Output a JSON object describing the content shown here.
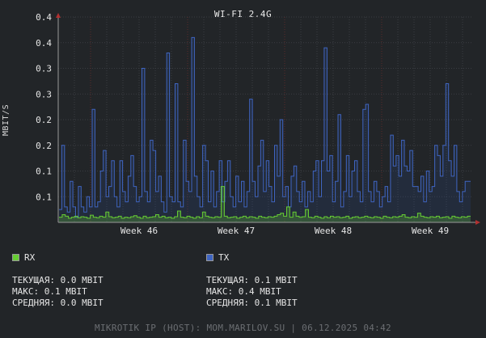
{
  "chart_data": {
    "type": "line",
    "title": "WI-FI 2.4G",
    "ylabel": "MBIT/S",
    "y_tick_labels": [
      "0.1",
      "0.1",
      "0.2",
      "0.2",
      "0.3",
      "0.3",
      "0.4",
      "0.4"
    ],
    "y_tick_values": [
      0.05,
      0.1,
      0.15,
      0.2,
      0.25,
      0.3,
      0.35,
      0.4
    ],
    "ylim": [
      0,
      0.4
    ],
    "x_tick_labels": [
      "Week 46",
      "Week 47",
      "Week 48",
      "Week 49"
    ],
    "grid": true,
    "legend": "bottom-left",
    "colors": {
      "rx": "#66cc33",
      "tx": "#2a4d9c",
      "tx_line": "#3f65c2",
      "grid": "#3a3d42",
      "axis_arrow": "#b03030"
    },
    "series": [
      {
        "name": "RX",
        "values": [
          0.01,
          0.015,
          0.012,
          0.008,
          0.01,
          0.012,
          0.009,
          0.011,
          0.01,
          0.008,
          0.014,
          0.01,
          0.009,
          0.012,
          0.01,
          0.02,
          0.011,
          0.009,
          0.01,
          0.012,
          0.008,
          0.01,
          0.009,
          0.011,
          0.013,
          0.01,
          0.008,
          0.012,
          0.009,
          0.01,
          0.011,
          0.015,
          0.01,
          0.012,
          0.009,
          0.01,
          0.008,
          0.011,
          0.022,
          0.01,
          0.009,
          0.012,
          0.01,
          0.008,
          0.011,
          0.009,
          0.02,
          0.012,
          0.01,
          0.009,
          0.011,
          0.01,
          0.07,
          0.012,
          0.009,
          0.01,
          0.011,
          0.008,
          0.01,
          0.012,
          0.009,
          0.011,
          0.01,
          0.008,
          0.012,
          0.01,
          0.009,
          0.011,
          0.01,
          0.012,
          0.015,
          0.018,
          0.012,
          0.03,
          0.01,
          0.02,
          0.012,
          0.01,
          0.011,
          0.025,
          0.01,
          0.009,
          0.012,
          0.01,
          0.008,
          0.011,
          0.009,
          0.012,
          0.01,
          0.011,
          0.009,
          0.01,
          0.012,
          0.008,
          0.01,
          0.011,
          0.009,
          0.01,
          0.012,
          0.01,
          0.009,
          0.011,
          0.01,
          0.008,
          0.012,
          0.01,
          0.009,
          0.011,
          0.01,
          0.012,
          0.015,
          0.01,
          0.009,
          0.011,
          0.01,
          0.018,
          0.012,
          0.01,
          0.009,
          0.011,
          0.01,
          0.012,
          0.009,
          0.01,
          0.011,
          0.008,
          0.012,
          0.01,
          0.009,
          0.011,
          0.01,
          0.012
        ]
      },
      {
        "name": "TX",
        "values": [
          0.025,
          0.15,
          0.03,
          0.02,
          0.08,
          0.03,
          0.01,
          0.07,
          0.03,
          0.02,
          0.05,
          0.03,
          0.22,
          0.03,
          0.04,
          0.1,
          0.14,
          0.05,
          0.07,
          0.12,
          0.05,
          0.03,
          0.12,
          0.06,
          0.04,
          0.09,
          0.13,
          0.07,
          0.04,
          0.05,
          0.3,
          0.06,
          0.04,
          0.16,
          0.14,
          0.06,
          0.09,
          0.04,
          0.02,
          0.33,
          0.05,
          0.04,
          0.27,
          0.04,
          0.03,
          0.16,
          0.08,
          0.06,
          0.36,
          0.09,
          0.05,
          0.03,
          0.15,
          0.12,
          0.04,
          0.1,
          0.03,
          0.06,
          0.12,
          0.04,
          0.08,
          0.12,
          0.05,
          0.03,
          0.09,
          0.04,
          0.08,
          0.03,
          0.06,
          0.24,
          0.08,
          0.05,
          0.11,
          0.16,
          0.06,
          0.12,
          0.07,
          0.04,
          0.15,
          0.09,
          0.2,
          0.05,
          0.07,
          0.03,
          0.09,
          0.11,
          0.06,
          0.04,
          0.08,
          0.03,
          0.06,
          0.04,
          0.1,
          0.12,
          0.05,
          0.12,
          0.34,
          0.1,
          0.13,
          0.04,
          0.08,
          0.21,
          0.03,
          0.06,
          0.13,
          0.05,
          0.1,
          0.12,
          0.06,
          0.04,
          0.22,
          0.23,
          0.06,
          0.04,
          0.08,
          0.06,
          0.03,
          0.05,
          0.07,
          0.04,
          0.17,
          0.11,
          0.13,
          0.09,
          0.16,
          0.11,
          0.1,
          0.14,
          0.07,
          0.07,
          0.06,
          0.09,
          0.04,
          0.1,
          0.06,
          0.07,
          0.15,
          0.13,
          0.09,
          0.15,
          0.27,
          0.12,
          0.09,
          0.15,
          0.06,
          0.04,
          0.06,
          0.08,
          0.08
        ]
      }
    ]
  },
  "legend": {
    "rx": {
      "label": "RX",
      "current": "ТЕКУЩАЯ: 0.0 MBIT",
      "max": "МАКС: 0.1 MBIT",
      "avg": "СРЕДНЯЯ: 0.0 MBIT"
    },
    "tx": {
      "label": "TX",
      "current": "ТЕКУЩАЯ: 0.1 MBIT",
      "max": "МАКС: 0.4 MBIT",
      "avg": "СРЕДНЯЯ: 0.1 MBIT"
    }
  },
  "footer": "MIKROTIK IP (HOST): MOM.MARILOV.SU | 06.12.2025 04:42"
}
